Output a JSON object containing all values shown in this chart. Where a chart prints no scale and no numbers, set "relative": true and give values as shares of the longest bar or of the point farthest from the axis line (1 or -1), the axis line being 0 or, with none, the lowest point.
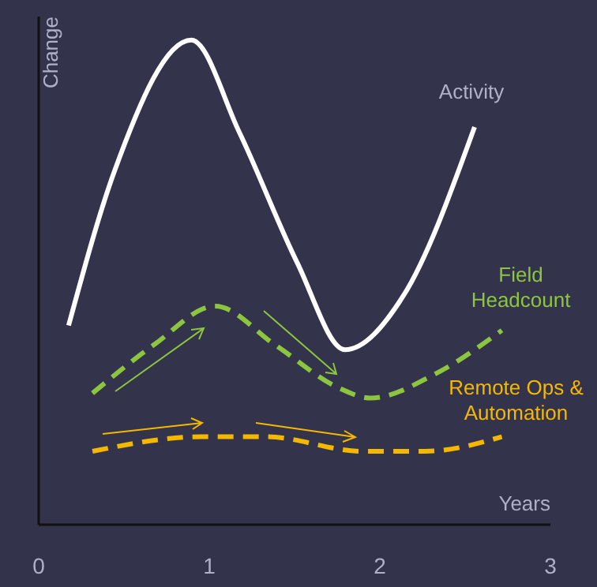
{
  "chart_data": {
    "type": "line",
    "relative": true,
    "xlabel": "Years",
    "ylabel": "Change",
    "xlim": [
      0,
      3
    ],
    "xticks": [
      0,
      1,
      2,
      3
    ],
    "grid": false,
    "marker": "none",
    "series": [
      {
        "name": "Activity",
        "color": "#ffffff",
        "line_style": "solid",
        "x": [
          0.18,
          0.45,
          0.9,
          1.18,
          1.52,
          1.8,
          2.14,
          2.56
        ],
        "values": [
          0.41,
          0.73,
          1,
          0.81,
          0.54,
          0.36,
          0.47,
          0.82
        ]
      },
      {
        "name": "Field Headcount",
        "color": "#8cc63f",
        "line_style": "dashed",
        "x": [
          0.32,
          0.68,
          1.04,
          1.39,
          1.77,
          1.95,
          2.33,
          2.72
        ],
        "values": [
          0.27,
          0.37,
          0.45,
          0.37,
          0.28,
          0.26,
          0.31,
          0.4
        ]
      },
      {
        "name": "Remote Ops & Automation",
        "color": "#f5b800",
        "line_style": "dashed",
        "x": [
          0.32,
          0.96,
          1.34,
          1.9,
          2.27,
          2.72
        ],
        "values": [
          0.15,
          0.18,
          0.18,
          0.15,
          0.15,
          0.18
        ]
      }
    ]
  }
}
